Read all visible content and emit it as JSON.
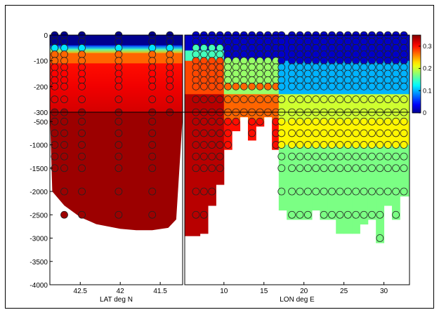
{
  "chart_data": {
    "type": "heatmap",
    "title": "",
    "panels": [
      {
        "id": "lat-section",
        "xlabel": "LAT deg N",
        "x_ticks": [
          42.5,
          42,
          41.5
        ],
        "x_tick_labels": [
          "42.5",
          "42",
          "41.5"
        ],
        "xlim": [
          42.88,
          41.22
        ],
        "station_x": [
          42.82,
          42.7,
          42.48,
          42.02,
          41.6,
          41.38
        ],
        "station_bottom_m": [
          1750,
          2700,
          2800,
          2750,
          2850,
          300
        ],
        "bottom_profile": {
          "x": [
            42.85,
            42.7,
            42.5,
            42.3,
            42.0,
            41.8,
            41.6,
            41.4,
            41.3,
            41.22
          ],
          "depth": [
            2000,
            2300,
            2550,
            2700,
            2800,
            2830,
            2830,
            2780,
            2600,
            400
          ]
        }
      },
      {
        "id": "lon-section",
        "xlabel": "LON deg E",
        "x_ticks": [
          10,
          15,
          20,
          25,
          30
        ],
        "x_tick_labels": [
          "10",
          "15",
          "20",
          "25",
          "30"
        ],
        "xlim": [
          5.1,
          33.2
        ],
        "station_x": [
          6.5,
          7.5,
          8.5,
          9.5,
          10.5,
          11.5,
          12.5,
          13.5,
          14.5,
          15.5,
          16.5,
          17.2,
          18.5,
          19.5,
          20.5,
          21.5,
          22.5,
          23.5,
          24.5,
          25.5,
          26.5,
          27.5,
          28.5,
          29.5,
          30.5,
          31.5,
          32.5
        ],
        "station_bottom_m": [
          2850,
          2800,
          2200,
          1750,
          1000,
          600,
          300,
          800,
          500,
          300,
          1000,
          2300,
          2500,
          2500,
          2500,
          2300,
          2500,
          2500,
          2800,
          2800,
          2800,
          2600,
          2500,
          3000,
          2200,
          2500,
          2000
        ]
      }
    ],
    "y_axis": {
      "upper_ticks": [
        0,
        -100,
        -200,
        -300
      ],
      "upper_tick_labels": [
        "0",
        "-100",
        "-200",
        "-300"
      ],
      "upper_range": [
        0,
        -300
      ],
      "lower_ticks": [
        -500,
        -1000,
        -1500,
        -2000,
        -2500,
        -3000,
        -3500,
        -4000
      ],
      "lower_tick_labels": [
        "-500",
        "-1000",
        "-1500",
        "-2000",
        "-2500",
        "-3000",
        "-3500",
        "-4000"
      ],
      "lower_range": [
        -300,
        -4000
      ]
    },
    "sample_depths_m": [
      0,
      25,
      50,
      75,
      100,
      125,
      150,
      175,
      200,
      250,
      300,
      500,
      750,
      1000,
      1250,
      1500,
      2000,
      2500,
      3000
    ],
    "colorbar": {
      "ticks": [
        0,
        0.1,
        0.2,
        0.3
      ],
      "tick_labels": [
        "0",
        "0.1",
        "0.2",
        "0.3"
      ],
      "range": [
        0,
        0.35
      ],
      "colormap": "jet",
      "colors": [
        "#00008f",
        "#0000ff",
        "#00ffff",
        "#ffff00",
        "#ff0000",
        "#800000"
      ]
    },
    "grid": false,
    "legend": "none"
  }
}
